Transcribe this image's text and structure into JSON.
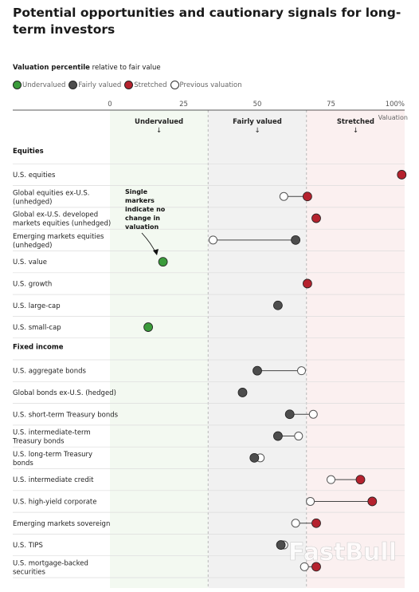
{
  "title": "Potential opportunities and cautionary signals for long-term investors",
  "subtitle_bold": "Valuation percentile",
  "subtitle_rest": " relative to fair value",
  "legend": [
    {
      "label": "Undervalued",
      "color": "#3a9b3a",
      "type": "filled"
    },
    {
      "label": "Fairly valued",
      "color": "#4d4d4d",
      "type": "filled"
    },
    {
      "label": "Stretched",
      "color": "#b5222e",
      "type": "filled"
    },
    {
      "label": "Previous valuation",
      "color": "#ffffff",
      "type": "hollow"
    }
  ],
  "zones": [
    {
      "label": "Undervalued",
      "arrow": "↓"
    },
    {
      "label": "Fairly valued",
      "arrow": "↓"
    },
    {
      "label": "Stretched",
      "arrow": "↓"
    }
  ],
  "annotation": [
    "Single",
    "markers",
    "indicate no",
    "change in",
    "valuation"
  ],
  "watermark": "FastBull",
  "chart_data": {
    "type": "scatter",
    "xlabel": "Valuation",
    "xlim": [
      0,
      100
    ],
    "ticks": [
      "0",
      "25",
      "50",
      "75",
      "100%"
    ],
    "tick_values": [
      0,
      25,
      50,
      75,
      100
    ],
    "zone_boundaries": [
      33.3,
      66.7
    ],
    "groups": [
      {
        "name": "Equities",
        "rows": [
          {
            "label": [
              "U.S. equities"
            ],
            "current": 99,
            "previous": null,
            "category": "stretched"
          },
          {
            "label": [
              "Global equities ex-U.S.",
              "(unhedged)"
            ],
            "current": 67,
            "previous": 59,
            "category": "stretched"
          },
          {
            "label": [
              "Global ex-U.S. developed",
              "markets equities (unhedged)"
            ],
            "current": 70,
            "previous": null,
            "category": "stretched"
          },
          {
            "label": [
              "Emerging markets equities",
              "(unhedged)"
            ],
            "current": 63,
            "previous": 35,
            "category": "fair"
          },
          {
            "label": [
              "U.S. value"
            ],
            "current": 18,
            "previous": null,
            "category": "under"
          },
          {
            "label": [
              "U.S. growth"
            ],
            "current": 67,
            "previous": null,
            "category": "stretched"
          },
          {
            "label": [
              "U.S. large-cap"
            ],
            "current": 57,
            "previous": null,
            "category": "fair"
          },
          {
            "label": [
              "U.S. small-cap"
            ],
            "current": 13,
            "previous": null,
            "category": "under"
          }
        ]
      },
      {
        "name": "Fixed income",
        "rows": [
          {
            "label": [
              "U.S. aggregate bonds"
            ],
            "current": 50,
            "previous": 65,
            "category": "fair"
          },
          {
            "label": [
              "Global bonds ex-U.S. (hedged)"
            ],
            "current": 45,
            "previous": null,
            "category": "fair"
          },
          {
            "label": [
              "U.S. short-term Treasury bonds"
            ],
            "current": 61,
            "previous": 69,
            "category": "fair"
          },
          {
            "label": [
              "U.S. intermediate-term",
              "Treasury bonds"
            ],
            "current": 57,
            "previous": 64,
            "category": "fair"
          },
          {
            "label": [
              "U.S. long-term Treasury",
              "bonds"
            ],
            "current": 49,
            "previous": 51,
            "category": "fair"
          },
          {
            "label": [
              "U.S. intermediate credit"
            ],
            "current": 85,
            "previous": 75,
            "category": "stretched"
          },
          {
            "label": [
              "U.S. high-yield corporate"
            ],
            "current": 89,
            "previous": 68,
            "category": "stretched"
          },
          {
            "label": [
              "Emerging markets sovereign"
            ],
            "current": 70,
            "previous": 63,
            "category": "stretched"
          },
          {
            "label": [
              "U.S. TIPS"
            ],
            "current": 58,
            "previous": 59,
            "category": "fair"
          },
          {
            "label": [
              "U.S. mortgage-backed",
              "securities"
            ],
            "current": 70,
            "previous": 66,
            "category": "stretched"
          }
        ]
      }
    ]
  }
}
